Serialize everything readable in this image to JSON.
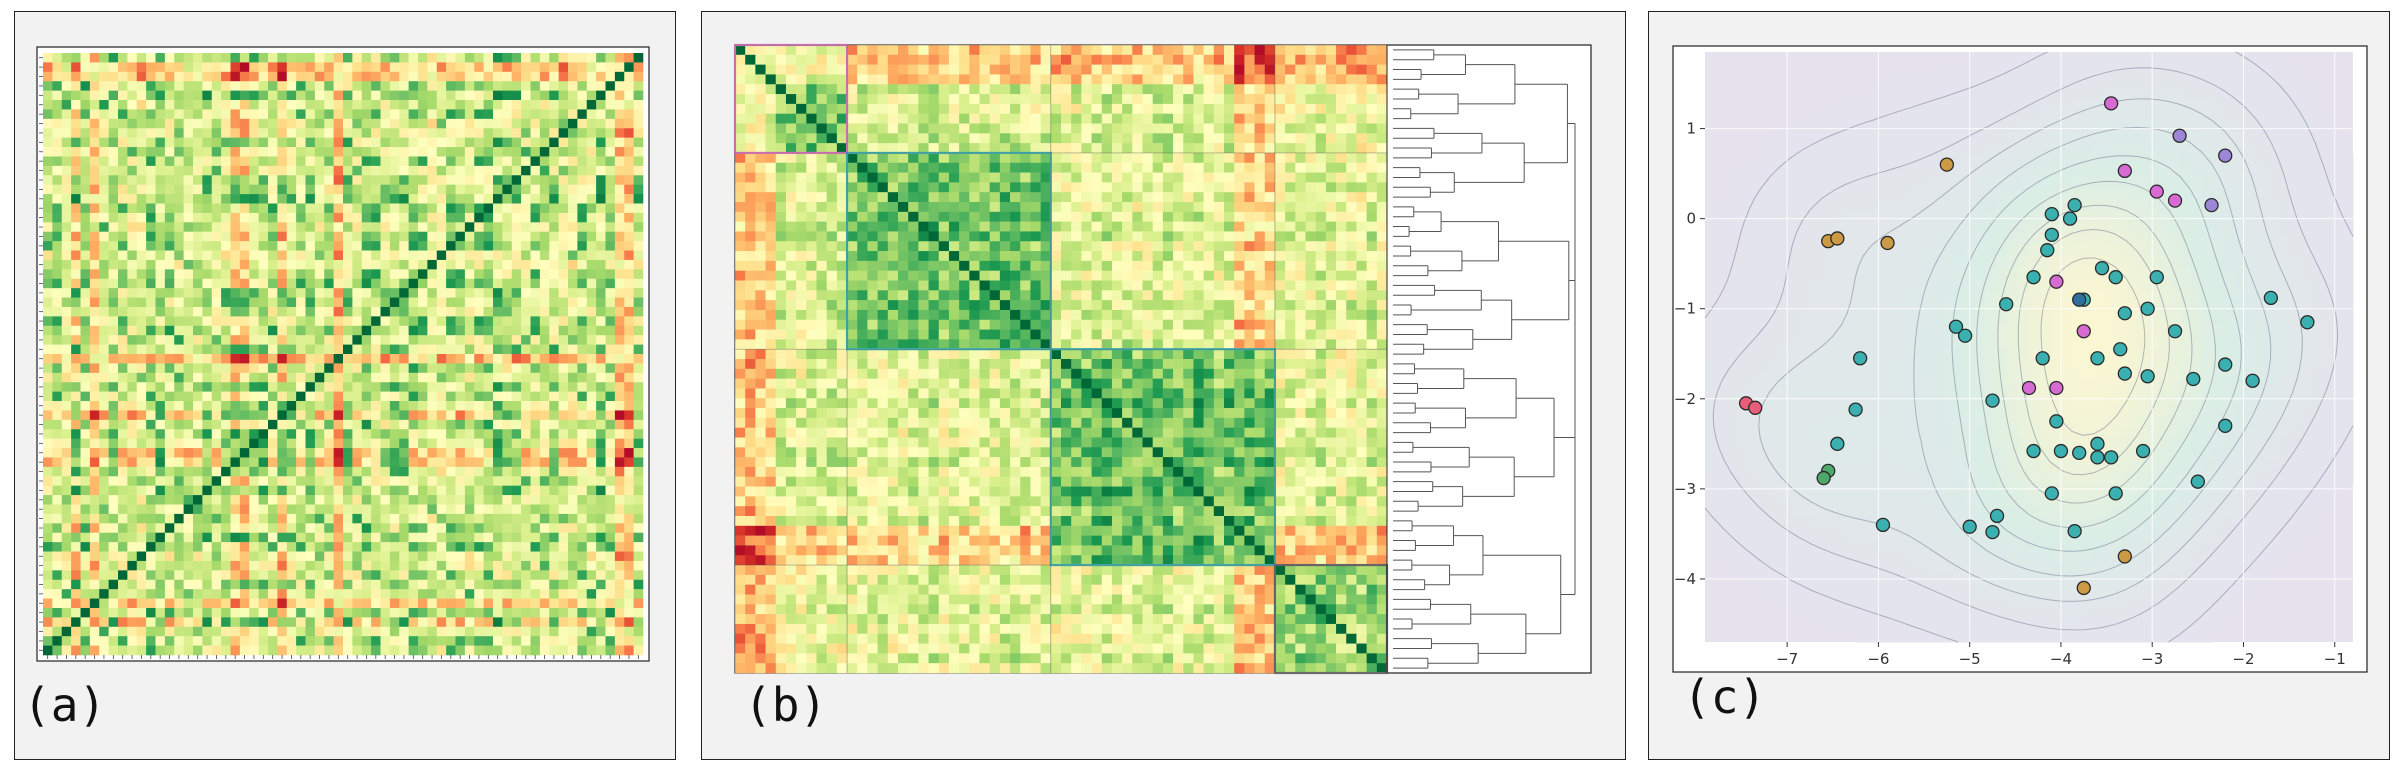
{
  "panels": {
    "a": {
      "label": "(a)"
    },
    "b": {
      "label": "(b)"
    },
    "c": {
      "label": "(c)"
    }
  },
  "chart_data": [
    {
      "panel": "(a)",
      "type": "heatmap",
      "description_visible": "Unordered correlation matrix, green = high, red = low, dark green diagonal",
      "n": 64,
      "value_range": [
        -1,
        1
      ],
      "colormap": [
        "#a50026",
        "#d73027",
        "#f46d43",
        "#fdae61",
        "#fee08b",
        "#ffffbf",
        "#d9ef8b",
        "#a6d96a",
        "#66bd63",
        "#1a9850",
        "#006837"
      ],
      "axes_ticks": false
    },
    {
      "panel": "(b)",
      "type": "heatmap",
      "description_visible": "Reordered correlation matrix with dendrogram on the right; cyan and magenta cluster boxes",
      "n": 64,
      "value_range": [
        -1,
        1
      ],
      "clusters": [
        {
          "start": 0,
          "end": 11,
          "color": "#e377c2"
        },
        {
          "start": 11,
          "end": 31,
          "color": "#3fb3b3"
        },
        {
          "start": 31,
          "end": 53,
          "color": "#3fb3b3"
        },
        {
          "start": 53,
          "end": 64,
          "color": "#6a6a6a"
        }
      ],
      "dendrogram": true
    },
    {
      "panel": "(c)",
      "type": "scatter",
      "xlim": [
        -7.9,
        -0.8
      ],
      "ylim": [
        -4.7,
        1.85
      ],
      "xticks": [
        -7,
        -6,
        -5,
        -4,
        -3,
        -2,
        -1
      ],
      "yticks": [
        -4,
        -3,
        -2,
        -1,
        0,
        1
      ],
      "grid": true,
      "background": "#e6e2ee",
      "contours": true,
      "groups": [
        {
          "color": "#cc9a45",
          "points": [
            [
              -6.55,
              -0.25
            ],
            [
              -6.45,
              -0.22
            ],
            [
              -5.9,
              -0.27
            ],
            [
              -5.25,
              0.6
            ],
            [
              -3.3,
              -3.75
            ],
            [
              -3.75,
              -4.1
            ]
          ]
        },
        {
          "color": "#e75e7b",
          "points": [
            [
              -7.45,
              -2.05
            ],
            [
              -7.35,
              -2.1
            ]
          ]
        },
        {
          "color": "#4fa86b",
          "points": [
            [
              -6.55,
              -2.8
            ],
            [
              -6.6,
              -2.88
            ]
          ]
        },
        {
          "color": "#d86ad3",
          "points": [
            [
              -3.45,
              1.28
            ],
            [
              -3.3,
              0.53
            ],
            [
              -2.95,
              0.3
            ],
            [
              -2.75,
              0.2
            ],
            [
              -4.05,
              -0.7
            ],
            [
              -3.75,
              -1.25
            ],
            [
              -4.35,
              -1.88
            ],
            [
              -4.05,
              -1.88
            ]
          ]
        },
        {
          "color": "#9d86d8",
          "points": [
            [
              -2.7,
              0.92
            ],
            [
              -2.2,
              0.7
            ],
            [
              -2.35,
              0.15
            ]
          ]
        },
        {
          "color": "#3bb0b0",
          "points": [
            [
              -4.1,
              0.05
            ],
            [
              -3.85,
              0.15
            ],
            [
              -4.1,
              -0.18
            ],
            [
              -3.9,
              0.0
            ],
            [
              -4.15,
              -0.35
            ],
            [
              -3.55,
              -0.55
            ],
            [
              -3.4,
              -0.65
            ],
            [
              -4.3,
              -0.65
            ],
            [
              -3.75,
              -0.9
            ],
            [
              -3.3,
              -1.05
            ],
            [
              -3.05,
              -1.0
            ],
            [
              -2.95,
              -0.65
            ],
            [
              -4.6,
              -0.95
            ],
            [
              -5.05,
              -1.3
            ],
            [
              -5.15,
              -1.2
            ],
            [
              -2.75,
              -1.25
            ],
            [
              -3.35,
              -1.45
            ],
            [
              -3.6,
              -1.55
            ],
            [
              -4.2,
              -1.55
            ],
            [
              -3.3,
              -1.72
            ],
            [
              -3.05,
              -1.75
            ],
            [
              -2.55,
              -1.78
            ],
            [
              -2.2,
              -1.62
            ],
            [
              -1.9,
              -1.8
            ],
            [
              -1.7,
              -0.88
            ],
            [
              -1.3,
              -1.15
            ],
            [
              -2.2,
              -2.3
            ],
            [
              -6.2,
              -1.55
            ],
            [
              -6.25,
              -2.12
            ],
            [
              -6.45,
              -2.5
            ],
            [
              -4.75,
              -2.02
            ],
            [
              -4.05,
              -2.25
            ],
            [
              -4.0,
              -2.58
            ],
            [
              -4.3,
              -2.58
            ],
            [
              -3.8,
              -2.6
            ],
            [
              -3.6,
              -2.5
            ],
            [
              -3.45,
              -2.65
            ],
            [
              -3.1,
              -2.58
            ],
            [
              -3.6,
              -2.65
            ],
            [
              -3.4,
              -3.05
            ],
            [
              -4.1,
              -3.05
            ],
            [
              -4.7,
              -3.3
            ],
            [
              -4.75,
              -3.48
            ],
            [
              -5.0,
              -3.42
            ],
            [
              -3.85,
              -3.47
            ],
            [
              -2.5,
              -2.92
            ],
            [
              -5.95,
              -3.4
            ]
          ]
        },
        {
          "color": "#2f6fa0",
          "points": [
            [
              -3.8,
              -0.9
            ]
          ]
        }
      ]
    }
  ]
}
